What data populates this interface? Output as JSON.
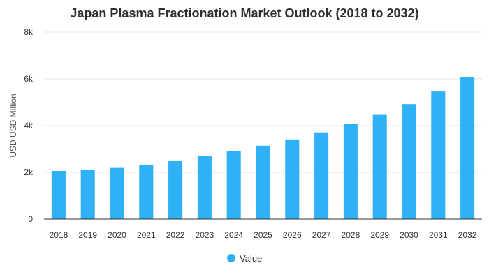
{
  "chart_data": {
    "type": "bar",
    "title": "Japan Plasma Fractionation Market Outlook (2018 to 2032)",
    "xlabel": "",
    "ylabel": "USD USD Million",
    "categories": [
      "2018",
      "2019",
      "2020",
      "2021",
      "2022",
      "2023",
      "2024",
      "2025",
      "2026",
      "2027",
      "2028",
      "2029",
      "2030",
      "2031",
      "2032"
    ],
    "series": [
      {
        "name": "Value",
        "color": "#2eb2f5",
        "values": [
          2060,
          2090,
          2190,
          2330,
          2480,
          2690,
          2900,
          3140,
          3410,
          3710,
          4060,
          4460,
          4920,
          5460,
          6090
        ]
      }
    ],
    "ylim": [
      0,
      8000
    ],
    "yticks": [
      {
        "value": 0,
        "label": "0"
      },
      {
        "value": 2000,
        "label": "2k"
      },
      {
        "value": 4000,
        "label": "4k"
      },
      {
        "value": 6000,
        "label": "6k"
      },
      {
        "value": 8000,
        "label": "8k"
      }
    ],
    "grid": true,
    "legend_position": "bottom-center"
  }
}
